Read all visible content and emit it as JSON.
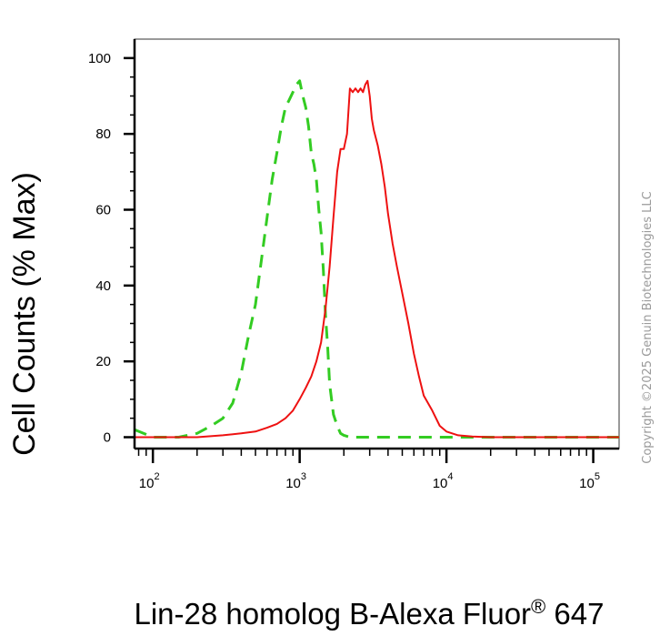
{
  "chart_data": {
    "type": "line",
    "title": "",
    "xlabel_main": "Lin-28 homolog B-Alexa Fluor",
    "xlabel_reg": "®",
    "xlabel_tail": " 647",
    "ylabel": "Cell Counts (% Max)",
    "x_scale": "log",
    "xlim": [
      75,
      150000
    ],
    "ylim": [
      -3,
      105
    ],
    "x_ticks": [
      {
        "value": 100,
        "base": "10",
        "exp": "2"
      },
      {
        "value": 1000,
        "base": "10",
        "exp": "3"
      },
      {
        "value": 10000,
        "base": "10",
        "exp": "4"
      },
      {
        "value": 100000,
        "base": "10",
        "exp": "5"
      }
    ],
    "y_ticks": [
      0,
      20,
      40,
      60,
      80,
      100
    ],
    "grid": false,
    "legend": "none",
    "series": [
      {
        "color": "#33cc22",
        "style": "dashed",
        "x": [
          75,
          100,
          150,
          200,
          250,
          300,
          350,
          400,
          450,
          500,
          550,
          600,
          650,
          700,
          750,
          800,
          850,
          900,
          950,
          1000,
          1050,
          1100,
          1150,
          1200,
          1250,
          1300,
          1350,
          1400,
          1450,
          1500,
          1550,
          1600,
          1700,
          1800,
          1900,
          2000,
          2200,
          2500,
          3000,
          5000,
          10000,
          150000
        ],
        "y": [
          2,
          0,
          0,
          1,
          3,
          5,
          9,
          17,
          27,
          35,
          47,
          58,
          68,
          75,
          82,
          87,
          89,
          91,
          93,
          94,
          90,
          87,
          82,
          75,
          72,
          68,
          60,
          54,
          44,
          32,
          24,
          14,
          6,
          3,
          1,
          0.5,
          0,
          0,
          0,
          0,
          0,
          0
        ]
      },
      {
        "color": "#ee1111",
        "style": "solid",
        "x": [
          75,
          200,
          300,
          400,
          500,
          600,
          700,
          800,
          900,
          1000,
          1100,
          1200,
          1300,
          1400,
          1500,
          1600,
          1700,
          1800,
          1900,
          2000,
          2100,
          2200,
          2300,
          2400,
          2500,
          2600,
          2700,
          2800,
          2900,
          3000,
          3100,
          3200,
          3400,
          3600,
          3800,
          4000,
          4300,
          4600,
          5000,
          5500,
          6000,
          6500,
          7000,
          8000,
          9000,
          10000,
          12000,
          15000,
          20000,
          50000,
          150000
        ],
        "y": [
          0,
          0,
          0.5,
          1,
          1.5,
          2.5,
          3.5,
          5,
          7,
          10,
          13,
          16,
          20,
          25,
          34,
          45,
          58,
          70,
          76,
          76,
          80,
          92,
          91,
          92,
          91,
          92,
          91,
          93,
          94,
          90,
          84,
          81,
          77,
          72,
          66,
          59,
          51,
          45,
          38,
          30,
          22,
          16,
          11,
          7,
          3,
          1.5,
          0.5,
          0.2,
          0,
          0,
          0
        ]
      }
    ]
  },
  "copyright": "Copyright ©2025 Genuin Biotechnologies LLC"
}
